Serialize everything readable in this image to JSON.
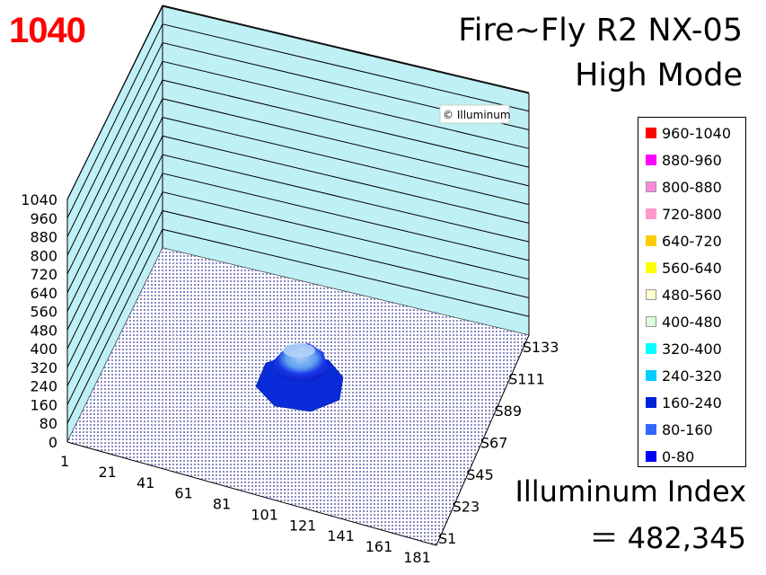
{
  "peak_label": "1040",
  "title_line1": "Fire~Fly R2 NX-05",
  "title_line2": "High Mode",
  "watermark": "© Illuminum",
  "index_label": "Illuminum Index",
  "index_value": "＝ 482,345",
  "colors": {
    "peak": "#ff0000",
    "wall": "#bff0f5",
    "floor_mesh": "#7a7ab8",
    "surface": "#1030e8",
    "surface_top": "#5c9ff0"
  },
  "chart_data": {
    "type": "surface3d",
    "title": "Fire~Fly R2 NX-05 High Mode",
    "z_ticks": [
      "0",
      "80",
      "160",
      "240",
      "320",
      "400",
      "480",
      "560",
      "640",
      "720",
      "800",
      "880",
      "960",
      "1040"
    ],
    "zlim": [
      0,
      1040
    ],
    "x_ticks": [
      "1",
      "21",
      "41",
      "61",
      "81",
      "101",
      "121",
      "141",
      "161",
      "181"
    ],
    "y_ticks": [
      "S1",
      "S23",
      "S45",
      "S67",
      "S89",
      "S111",
      "S133"
    ],
    "peak_value": 1040,
    "illuminum_index": 482345,
    "legend": [
      {
        "label": "960-1040",
        "color": "#ff0000"
      },
      {
        "label": "880-960",
        "color": "#ff00ff"
      },
      {
        "label": "800-880",
        "color": "#ff88dd"
      },
      {
        "label": "720-800",
        "color": "#ff99cc"
      },
      {
        "label": "640-720",
        "color": "#ffcc00"
      },
      {
        "label": "560-640",
        "color": "#ffff00"
      },
      {
        "label": "480-560",
        "color": "#ffffcc"
      },
      {
        "label": "400-480",
        "color": "#ddffdd"
      },
      {
        "label": "320-400",
        "color": "#00ffff"
      },
      {
        "label": "240-320",
        "color": "#00ccff"
      },
      {
        "label": "160-240",
        "color": "#0022dd"
      },
      {
        "label": "80-160",
        "color": "#3366ff"
      },
      {
        "label": "0-80",
        "color": "#0000ff"
      }
    ]
  }
}
